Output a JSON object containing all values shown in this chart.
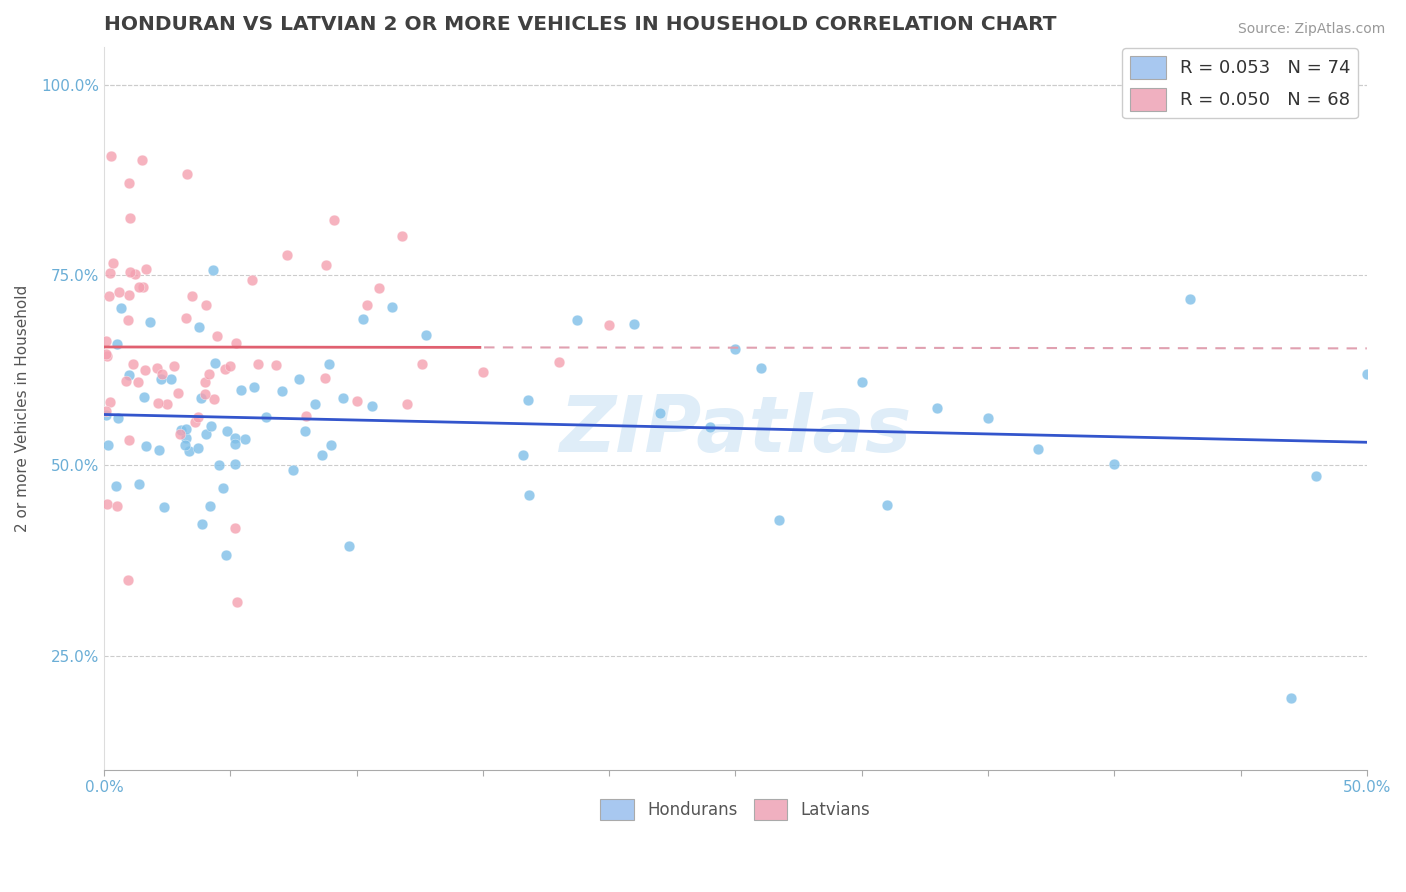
{
  "title": "HONDURAN VS LATVIAN 2 OR MORE VEHICLES IN HOUSEHOLD CORRELATION CHART",
  "source_text": "Source: ZipAtlas.com",
  "ylabel": "2 or more Vehicles in Household",
  "xlim": [
    0.0,
    0.5
  ],
  "ylim": [
    0.1,
    1.05
  ],
  "yticks": [
    0.25,
    0.5,
    0.75,
    1.0
  ],
  "yticklabels": [
    "25.0%",
    "50.0%",
    "75.0%",
    "100.0%"
  ],
  "xtick_vals": [
    0.0,
    0.05,
    0.1,
    0.15,
    0.2,
    0.25,
    0.3,
    0.35,
    0.4,
    0.45,
    0.5
  ],
  "xticklabels": [
    "0.0%",
    "",
    "",
    "",
    "",
    "",
    "",
    "",
    "",
    "",
    "50.0%"
  ],
  "watermark": "ZIPatlas",
  "blue_scatter_color": "#7fbfe8",
  "pink_scatter_color": "#f4a0b0",
  "blue_line_color": "#3355cc",
  "pink_line_solid_color": "#e06070",
  "pink_line_dash_color": "#e0a0b0",
  "legend_label_blue": "R = 0.053   N = 74",
  "legend_label_pink": "R = 0.050   N = 68",
  "legend_color_blue": "#a8c8f0",
  "legend_color_pink": "#f0b0c0",
  "background_color": "#ffffff",
  "grid_color": "#cccccc",
  "title_color": "#404040",
  "axis_tick_color": "#6baed6",
  "ylabel_color": "#555555"
}
